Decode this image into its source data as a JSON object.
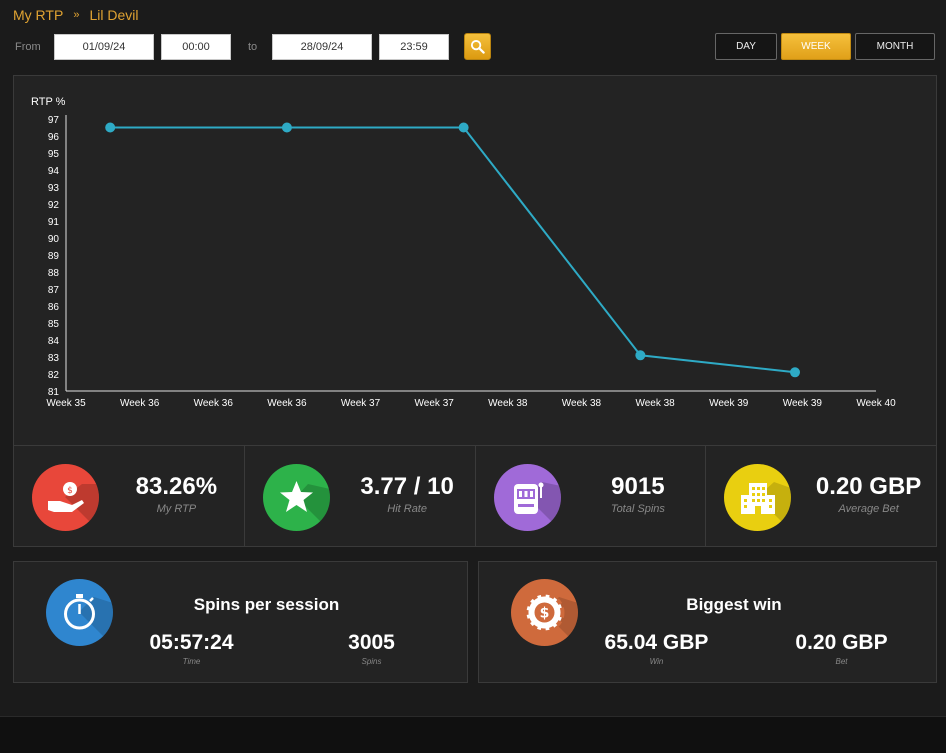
{
  "breadcrumb": {
    "root": "My RTP",
    "separator": "»",
    "current": "Lil Devil"
  },
  "filter": {
    "from_label": "From",
    "from_date": "01/09/24",
    "from_time": "00:00",
    "to_label": "to",
    "to_date": "28/09/24",
    "to_time": "23:59",
    "search_icon": "search-icon",
    "periods": [
      "DAY",
      "WEEK",
      "MONTH"
    ],
    "active_period": "WEEK"
  },
  "chart_data": {
    "type": "line",
    "ylabel": "RTP %",
    "y_ticks": [
      97,
      96,
      95,
      94,
      93,
      92,
      91,
      90,
      89,
      88,
      87,
      86,
      85,
      84,
      83,
      82,
      81
    ],
    "ylim": [
      81,
      97
    ],
    "x_ticks": [
      "Week 35",
      "Week 36",
      "Week 36",
      "Week 36",
      "Week 37",
      "Week 37",
      "Week 38",
      "Week 38",
      "Week 38",
      "Week 39",
      "Week 39",
      "Week 40"
    ],
    "points": [
      {
        "x": 0.6,
        "y": 96.5
      },
      {
        "x": 3.0,
        "y": 96.5
      },
      {
        "x": 5.4,
        "y": 96.5
      },
      {
        "x": 7.8,
        "y": 83.1
      },
      {
        "x": 9.9,
        "y": 82.1
      }
    ],
    "color": "#2eaac5",
    "grid": false
  },
  "stats": [
    {
      "value": "83.26%",
      "caption": "My RTP",
      "icon": "money-hand-icon",
      "color": "#e8473a"
    },
    {
      "value": "3.77 / 10",
      "caption": "Hit Rate",
      "icon": "star-icon",
      "color": "#2db24a"
    },
    {
      "value": "9015",
      "caption": "Total Spins",
      "icon": "slot-machine-icon",
      "color": "#a06ad8"
    },
    {
      "value": "0.20 GBP",
      "caption": "Average Bet",
      "icon": "casino-building-icon",
      "color": "#e9cf10"
    }
  ],
  "session": {
    "title": "Spins per session",
    "icon": "stopwatch-icon",
    "color": "#2f86cf",
    "time_value": "05:57:24",
    "time_caption": "Time",
    "spins_value": "3005",
    "spins_caption": "Spins"
  },
  "biggest_win": {
    "title": "Biggest win",
    "icon": "casino-chip-icon",
    "color": "#cf6a3c",
    "win_value": "65.04 GBP",
    "win_caption": "Win",
    "bet_value": "0.20 GBP",
    "bet_caption": "Bet"
  }
}
